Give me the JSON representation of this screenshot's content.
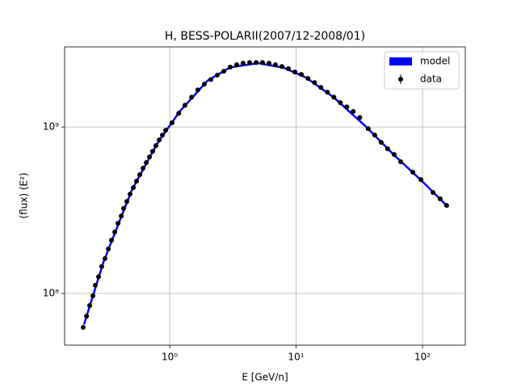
{
  "chart_data": {
    "type": "scatter",
    "title": "H, BESS-POLARII(2007/12-2008/01)",
    "x_label": "E [GeV/n]",
    "y_label": "(flux)  (E²)",
    "xlog": true,
    "ylog": true,
    "grid": true,
    "legend": "upper right",
    "xlim": [
      0.1476,
      218
    ],
    "ylim": [
      48900000,
      3030000000
    ],
    "xticks": [
      {
        "value": 1,
        "label": "10⁰"
      },
      {
        "value": 10,
        "label": "10¹"
      },
      {
        "value": 100,
        "label": "10²"
      }
    ],
    "yticks": [
      {
        "value": 100000000,
        "label": "10⁸"
      },
      {
        "value": 1000000000,
        "label": "10⁹"
      }
    ],
    "model": {
      "name": "model",
      "color": "#0000ff",
      "x": [
        0.21,
        0.3,
        0.5,
        0.8,
        1.2,
        2,
        3,
        5,
        8,
        12,
        20,
        35,
        60,
        100,
        160
      ],
      "values": [
        65000000,
        155000000,
        415000000,
        800000000,
        1240000000,
        1900000000,
        2280000000,
        2420000000,
        2270000000,
        1980000000,
        1500000000,
        1020000000,
        675000000,
        470000000,
        330000000
      ]
    },
    "series": [
      {
        "name": "data",
        "color": "#000000",
        "x": [
          0.207,
          0.22,
          0.233,
          0.247,
          0.258,
          0.274,
          0.29,
          0.308,
          0.327,
          0.347,
          0.368,
          0.39,
          0.414,
          0.432,
          0.458,
          0.486,
          0.516,
          0.547,
          0.58,
          0.615,
          0.653,
          0.692,
          0.734,
          0.779,
          0.826,
          0.876,
          0.929,
          1.045,
          1.18,
          1.32,
          1.49,
          1.67,
          1.88,
          2.12,
          2.38,
          2.68,
          3.01,
          3.39,
          3.81,
          4.29,
          4.83,
          5.43,
          6.11,
          6.87,
          7.73,
          8.7,
          9.79,
          11.0,
          12.4,
          14.0,
          15.7,
          17.7,
          19.9,
          22.4,
          25.2,
          28.3,
          31.9,
          37.2,
          41.9,
          47.1,
          53.0,
          59.7,
          67.2,
          83.9,
          97.2,
          121,
          138,
          155
        ],
        "values": [
          62500000,
          73000000,
          84600000,
          96700000,
          112000000,
          126000000,
          145000000,
          162000000,
          185000000,
          209000000,
          234000000,
          264000000,
          292000000,
          324000000,
          357000000,
          395000000,
          432000000,
          473000000,
          517000000,
          565000000,
          611000000,
          661000000,
          715000000,
          773000000,
          836000000,
          894000000,
          956000000,
          1060000000,
          1210000000,
          1350000000,
          1510000000,
          1670000000,
          1810000000,
          1930000000,
          2050000000,
          2160000000,
          2290000000,
          2370000000,
          2420000000,
          2440000000,
          2440000000,
          2440000000,
          2420000000,
          2370000000,
          2310000000,
          2240000000,
          2140000000,
          2070000000,
          1960000000,
          1850000000,
          1730000000,
          1620000000,
          1510000000,
          1400000000,
          1320000000,
          1240000000,
          1140000000,
          978000000,
          894000000,
          809000000,
          739000000,
          684000000,
          618000000,
          535000000,
          483000000,
          404000000,
          370000000,
          338000000
        ]
      }
    ]
  }
}
